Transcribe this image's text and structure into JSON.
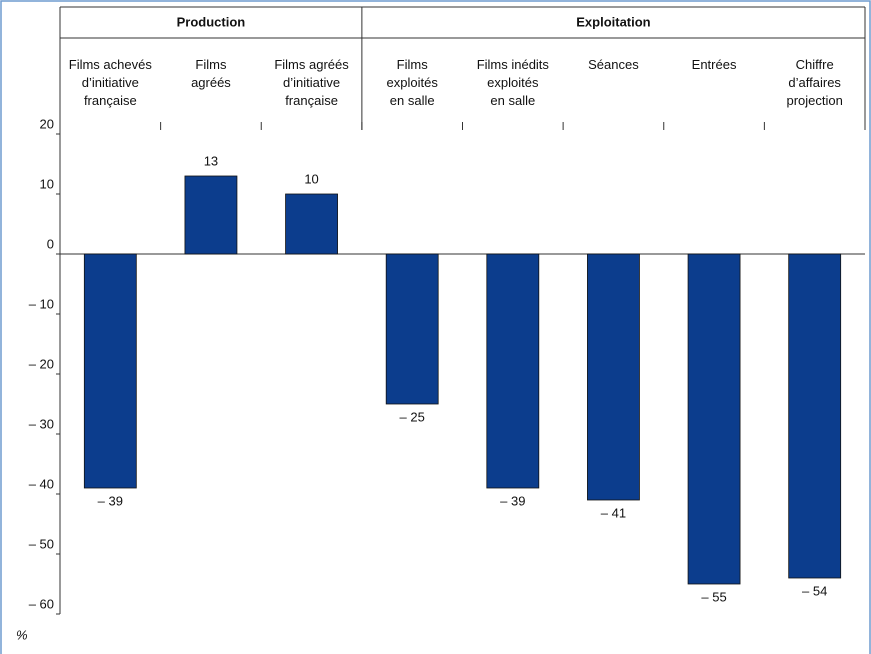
{
  "chart_data": {
    "type": "bar",
    "groups": [
      {
        "label": "Production",
        "span": 3
      },
      {
        "label": "Exploitation",
        "span": 5
      }
    ],
    "categories": [
      "Films achevés\nd’initiative\nfrançaise",
      "Films\nagréés",
      "Films agréés\nd’initiative\nfrançaise",
      "Films\nexploités\nen salle",
      "Films inédits\nexploités\nen salle",
      "Séances",
      "Entrées",
      "Chiffre\nd’affaires\nprojection"
    ],
    "values": [
      -39,
      13,
      10,
      -25,
      -39,
      -41,
      -55,
      -54
    ],
    "value_labels": [
      "– 39",
      "13",
      "10",
      "– 25",
      "– 39",
      "– 41",
      "– 55",
      "– 54"
    ],
    "color": "#0c3d8d",
    "ylabel": "%",
    "ylim": [
      -60,
      20
    ],
    "yticks": [
      20,
      10,
      0,
      {
        "value": -10,
        "label": "– 10"
      },
      {
        "value": -20,
        "label": "– 20"
      },
      {
        "value": -30,
        "label": "– 30"
      },
      {
        "value": -40,
        "label": "– 40"
      },
      {
        "value": -50,
        "label": "– 50"
      },
      {
        "value": -60,
        "label": "– 60"
      }
    ]
  }
}
